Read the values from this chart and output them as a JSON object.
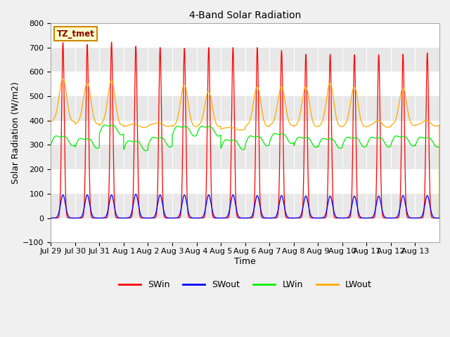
{
  "title": "4-Band Solar Radiation",
  "xlabel": "Time",
  "ylabel": "Solar Radiation (W/m2)",
  "ylim": [
    -100,
    800
  ],
  "yticks": [
    -100,
    0,
    100,
    200,
    300,
    400,
    500,
    600,
    700,
    800
  ],
  "total_days": 16,
  "colors": {
    "SWin": "#ff0000",
    "SWout": "#0000ff",
    "LWin": "#00ee00",
    "LWout": "#ffaa00"
  },
  "legend_label": "TZ_tmet",
  "xtick_labels": [
    "Jul 29",
    "Jul 30",
    "Jul 31",
    "Aug 1",
    "Aug 2",
    "Aug 3",
    "Aug 4",
    "Aug 5",
    "Aug 6",
    "Aug 7",
    "Aug 8",
    "Aug 9",
    "Aug 10",
    "Aug 11",
    "Aug 12",
    "Aug 13"
  ],
  "fig_bg": "#f0f0f0",
  "plot_bg": "#ffffff",
  "band_colors": [
    "#ffffff",
    "#e8e8e8"
  ],
  "SWin_peaks": [
    720,
    712,
    722,
    705,
    700,
    697,
    700,
    700,
    700,
    688,
    672,
    672,
    670,
    670,
    672,
    678
  ],
  "SWout_peaks": [
    95,
    95,
    95,
    98,
    95,
    95,
    95,
    95,
    92,
    92,
    90,
    90,
    90,
    90,
    92,
    92
  ],
  "LWin_base": [
    300,
    290,
    345,
    280,
    295,
    340,
    340,
    285,
    300,
    310,
    295,
    290,
    295,
    295,
    300,
    295
  ],
  "LWout_night": [
    395,
    385,
    380,
    375,
    380,
    375,
    375,
    365,
    375,
    380,
    375,
    375,
    375,
    375,
    380,
    380
  ],
  "LWout_peaks": [
    575,
    555,
    565,
    385,
    390,
    550,
    520,
    370,
    540,
    540,
    540,
    555,
    540,
    400,
    535,
    400
  ],
  "swin_sigma": 0.055,
  "swout_sigma": 0.1,
  "lwout_sigma": 0.15,
  "lwin_amp1": 35,
  "lwin_amp2": 12
}
